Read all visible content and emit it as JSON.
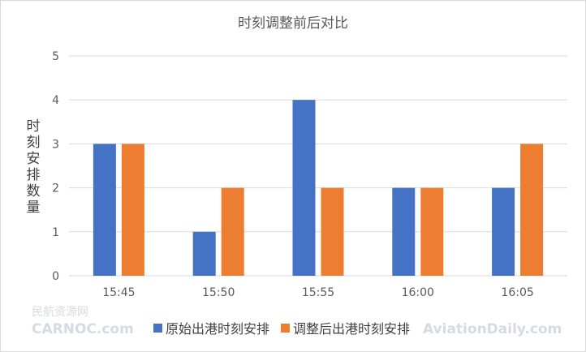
{
  "chart_data": {
    "type": "bar",
    "title": "时刻调整前后对比",
    "xlabel": "",
    "ylabel": "时刻安排数量",
    "categories": [
      "15:45",
      "15:50",
      "15:55",
      "16:00",
      "16:05"
    ],
    "series": [
      {
        "name": "原始出港时刻安排",
        "values": [
          3,
          1,
          4,
          2,
          2
        ],
        "color": "#4472c4"
      },
      {
        "name": "调整后出港时刻安排",
        "values": [
          3,
          2,
          2,
          2,
          3
        ],
        "color": "#ed7d31"
      }
    ],
    "ylim": [
      0,
      5
    ],
    "yticks": [
      0,
      1,
      2,
      3,
      4,
      5
    ],
    "grid": true,
    "legend": "bottom"
  },
  "watermarks": {
    "left_cn": "民航资源网",
    "left_en": "CARNOC.com",
    "right_en": "AviationDaily.com"
  }
}
